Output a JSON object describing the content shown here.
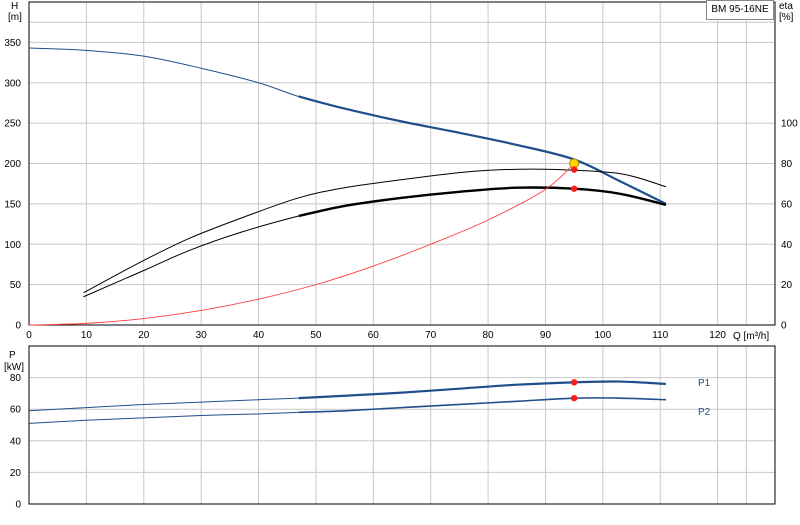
{
  "model_label": "BM 95-16NE",
  "colors": {
    "grid": "#c8c8c8",
    "head": "#1f4e8c",
    "efficiency": "#000000",
    "system": "#ff3b3b",
    "power": "#1f4e8c",
    "duty_point": "#ff1a1a",
    "duty_point_highlight": "#ffd700"
  },
  "chart_data": [
    {
      "type": "line",
      "x_label": "Q [m³/h]",
      "x_ticks": [
        "0",
        "10",
        "20",
        "30",
        "40",
        "50",
        "60",
        "70",
        "80",
        "90",
        "100",
        "110",
        "120"
      ],
      "xlim": [
        0,
        130
      ],
      "y_left_label_line1": "H",
      "y_left_label_line2": "[m]",
      "y_left_ticks": [
        "0",
        "50",
        "100",
        "150",
        "200",
        "250",
        "300",
        "350"
      ],
      "ylim_left": [
        0,
        400
      ],
      "y_right_label_line1": "eta",
      "y_right_label_line2": "[%]",
      "y_right_ticks": [
        "0",
        "20",
        "40",
        "60",
        "80",
        "100"
      ],
      "ylim_right": [
        0,
        160
      ],
      "grid": true,
      "series": [
        {
          "name": "",
          "role": "head-full-range",
          "axis": "left",
          "x": [
            0,
            10,
            20,
            30,
            40,
            47,
            55,
            65,
            75,
            85,
            95,
            103,
            111
          ],
          "y": [
            343,
            340,
            333,
            318,
            300,
            283,
            268,
            252,
            238,
            223,
            205,
            178,
            150
          ]
        },
        {
          "name": "",
          "role": "head-operating-range",
          "axis": "left",
          "x": [
            47,
            55,
            65,
            75,
            85,
            95,
            103,
            111
          ],
          "y": [
            283,
            268,
            252,
            238,
            223,
            205,
            178,
            150
          ]
        },
        {
          "name": "",
          "role": "efficiency-upper",
          "axis": "right",
          "x": [
            9.5,
            20,
            28,
            37,
            47,
            55,
            65,
            75,
            83,
            92,
            103,
            111
          ],
          "y": [
            16,
            32,
            43,
            53,
            63,
            68,
            72,
            75.5,
            77,
            77,
            75,
            68.5
          ]
        },
        {
          "name": "",
          "role": "efficiency-lower",
          "axis": "right",
          "x": [
            9.5,
            20,
            28,
            37,
            47,
            55,
            65,
            75,
            85,
            95,
            103,
            111
          ],
          "y": [
            14,
            27,
            37,
            46,
            54,
            59,
            63,
            66,
            68,
            67.5,
            65,
            59.5
          ]
        },
        {
          "name": "",
          "role": "efficiency-lower-operating",
          "axis": "right",
          "x": [
            47,
            55,
            65,
            75,
            85,
            95,
            103,
            111
          ],
          "y": [
            54,
            59,
            63,
            66,
            68,
            67.5,
            65,
            59.5
          ]
        },
        {
          "name": "",
          "role": "system-curve",
          "axis": "left",
          "x": [
            0,
            10,
            20,
            30,
            40,
            50,
            60,
            70,
            80,
            90,
            95
          ],
          "y": [
            0,
            2,
            8,
            18,
            32,
            50,
            73,
            100,
            130,
            168,
            200
          ]
        }
      ],
      "duty_points": [
        {
          "x": 95,
          "y": 200,
          "axis": "left",
          "style": "highlight"
        },
        {
          "x": 95,
          "y": 77,
          "axis": "right",
          "style": "red"
        },
        {
          "x": 95,
          "y": 67.5,
          "axis": "right",
          "style": "red"
        }
      ]
    },
    {
      "type": "line",
      "x_ticks": [
        "0",
        "10",
        "20",
        "30",
        "40",
        "50",
        "60",
        "70",
        "80",
        "90",
        "100",
        "110",
        "120"
      ],
      "xlim": [
        0,
        130
      ],
      "y_label_line1": "P",
      "y_label_line2": "[kW]",
      "y_ticks": [
        "0",
        "20",
        "40",
        "60",
        "80"
      ],
      "ylim": [
        0,
        100
      ],
      "grid": true,
      "series": [
        {
          "name": "P1",
          "x": [
            0,
            10,
            20,
            30,
            40,
            47,
            55,
            65,
            75,
            85,
            95,
            103,
            111
          ],
          "y": [
            59,
            61,
            63,
            64.5,
            66,
            67,
            68.5,
            70.5,
            73,
            75.5,
            77,
            77.5,
            76
          ]
        },
        {
          "name": "P2",
          "x": [
            0,
            10,
            20,
            30,
            40,
            47,
            55,
            65,
            75,
            85,
            95,
            103,
            111
          ],
          "y": [
            51,
            53,
            54.5,
            56,
            57,
            58,
            59,
            61,
            63,
            65,
            67,
            67,
            66
          ]
        }
      ],
      "duty_points": [
        {
          "x": 95,
          "y": 77,
          "style": "red"
        },
        {
          "x": 95,
          "y": 67,
          "style": "red"
        }
      ]
    }
  ]
}
